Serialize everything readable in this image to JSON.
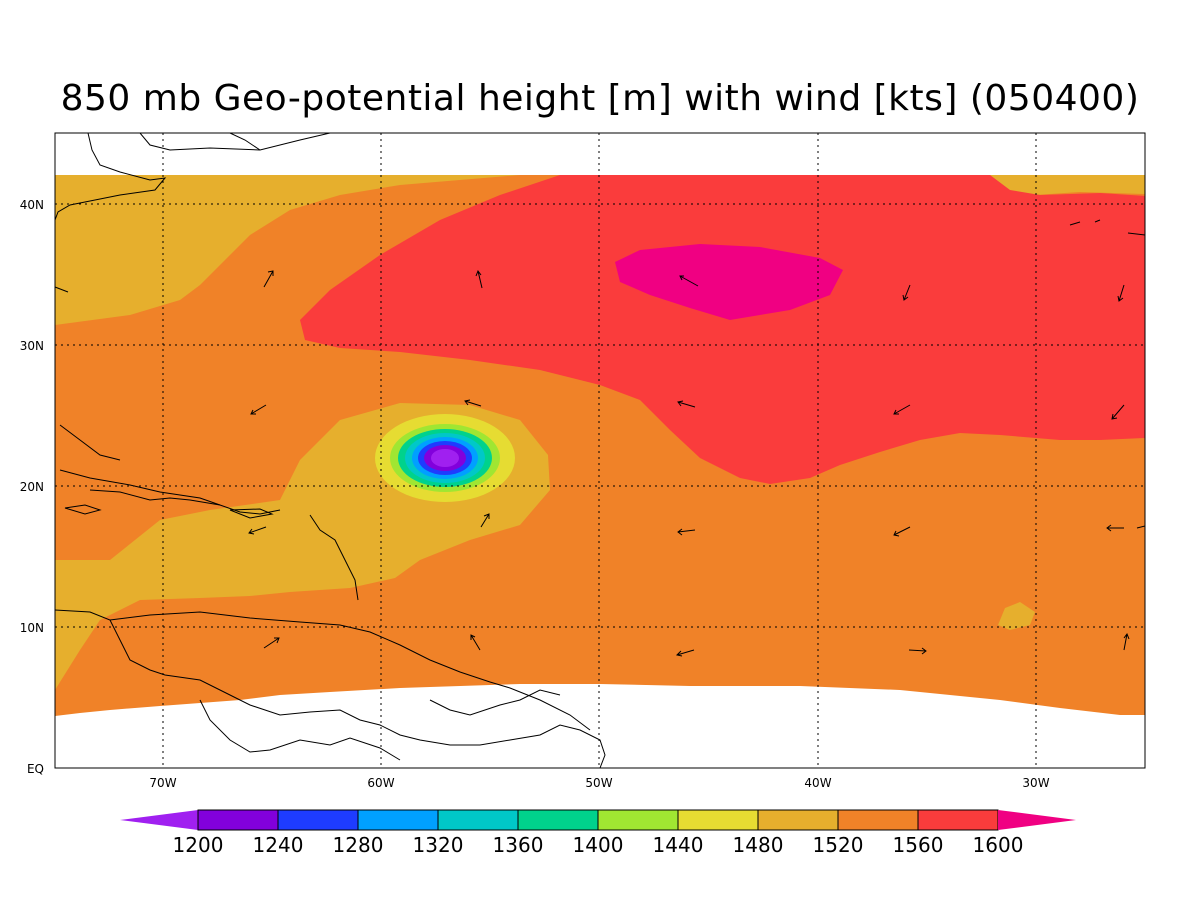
{
  "title": "850 mb Geo-potential height [m] with wind [kts] (050400)",
  "lon_labels": [
    "70W",
    "60W",
    "50W",
    "40W",
    "30W"
  ],
  "lat_labels": [
    "EQ",
    "10N",
    "20N",
    "30N",
    "40N"
  ],
  "colorbar": {
    "levels": [
      "1200",
      "1240",
      "1280",
      "1320",
      "1360",
      "1400",
      "1440",
      "1480",
      "1520",
      "1560",
      "1600"
    ],
    "colors": [
      "#a020f0",
      "#8200dc",
      "#1e3cff",
      "#00a0ff",
      "#00c8c8",
      "#00d28c",
      "#a0e632",
      "#e6dc32",
      "#e6af2d",
      "#f08228",
      "#fa3c3c",
      "#f00082"
    ]
  },
  "fields": {
    "c1480": "#e6af2d",
    "c1520": "#f08228",
    "c1560": "#fa3c3c",
    "c1600": "#f00082",
    "low_colors": [
      "#e6dc32",
      "#a0e632",
      "#00d28c",
      "#00c8c8",
      "#00a0ff",
      "#1e3cff",
      "#8200dc",
      "#a020f0"
    ]
  }
}
